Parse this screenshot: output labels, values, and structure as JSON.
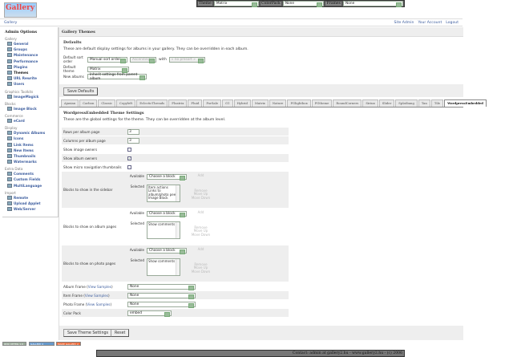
{
  "header": {
    "logo_text": "Gallery",
    "theme_label": "Theme",
    "theme_value": "Matrix",
    "colorpack_label": "ColorPack",
    "colorpack_value": "None",
    "frames_label": "Frames",
    "frames_value": "None"
  },
  "breadcrumb": {
    "home": "Gallery",
    "links": [
      "Site Admin",
      "Your Account",
      "Logout"
    ]
  },
  "sidebar": {
    "title": "Admin Options",
    "groups": [
      {
        "name": "Gallery",
        "items": [
          "General",
          "Groups",
          "Maintenance",
          "Performance",
          "Plugins",
          "Themes",
          "URL Rewrite",
          "Users"
        ]
      },
      {
        "name": "Graphics Toolkits",
        "items": [
          "ImageMagick"
        ]
      },
      {
        "name": "Blocks",
        "items": [
          "Image Block"
        ]
      },
      {
        "name": "Commerce",
        "items": [
          "eCard"
        ]
      },
      {
        "name": "Display",
        "items": [
          "Dynamic Albums",
          "Icons",
          "Link Items",
          "New Items",
          "Thumbnails",
          "Watermarks"
        ]
      },
      {
        "name": "Extra Data",
        "items": [
          "Comments",
          "Custom Fields",
          "MultiLanguage"
        ]
      },
      {
        "name": "Import",
        "items": [
          "Remote",
          "Upload Applet",
          "Web/Server"
        ]
      }
    ],
    "current": "Themes"
  },
  "main": {
    "title": "Gallery Themes",
    "defaults": {
      "heading": "Defaults",
      "description": "These are default display settings for albums in your gallery. They can be overridden in each album.",
      "sort_label": "Default sort order",
      "sort_value": "Manual sort order",
      "direction_value": "Ascending",
      "with_label": "with",
      "presort_value": "« no presort »",
      "theme_label": "Default theme",
      "theme_value": "Matrix",
      "new_albums_label": "New albums",
      "new_albums_value": "Inherit settings from parent album",
      "save_button": "Save Defaults"
    },
    "tabs": [
      "Ajaxian",
      "Carbon",
      "Classic",
      "Copyleft",
      "EclecticThreads",
      "Floatrix",
      "Fluid",
      "PorSale",
      "G1",
      "Hybrid",
      "Matrix",
      "Nature",
      "PGlightbox",
      "PGtheme",
      "RoundCorners",
      "Siriux",
      "Slider",
      "Splatbang",
      "Tan",
      "Tile",
      "WordpressEmbedded"
    ],
    "active_tab": "WordpressEmbedded",
    "theme_settings": {
      "heading": "WordpressEmbedded Theme Settings",
      "description": "These are the global settings for the theme. They can be overridden at the album level.",
      "rows_label": "Rows per album page",
      "rows_value": "3",
      "cols_label": "Columns per album page",
      "cols_value": "3",
      "show_image_owners_label": "Show image owners",
      "show_image_owners": false,
      "show_album_owners_label": "Show album owners",
      "show_album_owners": true,
      "show_micro_nav_label": "Show micro navigation thumbnails",
      "show_micro_nav": false,
      "available_label": "Available",
      "selected_label": "Selected",
      "choose_block": "Choose a block",
      "add": "Add",
      "remove": "Remove",
      "move_up": "Move Up",
      "move_down": "Move Down",
      "sidebar_blocks_label": "Blocks to show in the sidebar",
      "sidebar_blocks": "Item actions\nLinks to album/photo peers\nImage Block",
      "album_blocks_label": "Blocks to show on album pages",
      "album_blocks": "Show comments",
      "photo_blocks_label": "Blocks to show on photo pages",
      "photo_blocks": "Show comments",
      "album_frame_label": "Album Frame",
      "item_frame_label": "Item Frame",
      "photo_frame_label": "Photo Frame",
      "view_samples": "View Samples",
      "album_frame_value": "None",
      "item_frame_value": "None",
      "photo_frame_value": "None",
      "color_pack_label": "Color Pack",
      "color_pack_value": "embed",
      "save_button": "Save Theme Settings",
      "reset_button": "Reset"
    }
  },
  "badges": [
    "W3C XHTML 1.0",
    "GALLERY 2",
    "MADE GALLERY 2"
  ],
  "footer": {
    "text": "Contact: admin at gallery2.hu - www.gallery2.hu - (c) 2006"
  }
}
